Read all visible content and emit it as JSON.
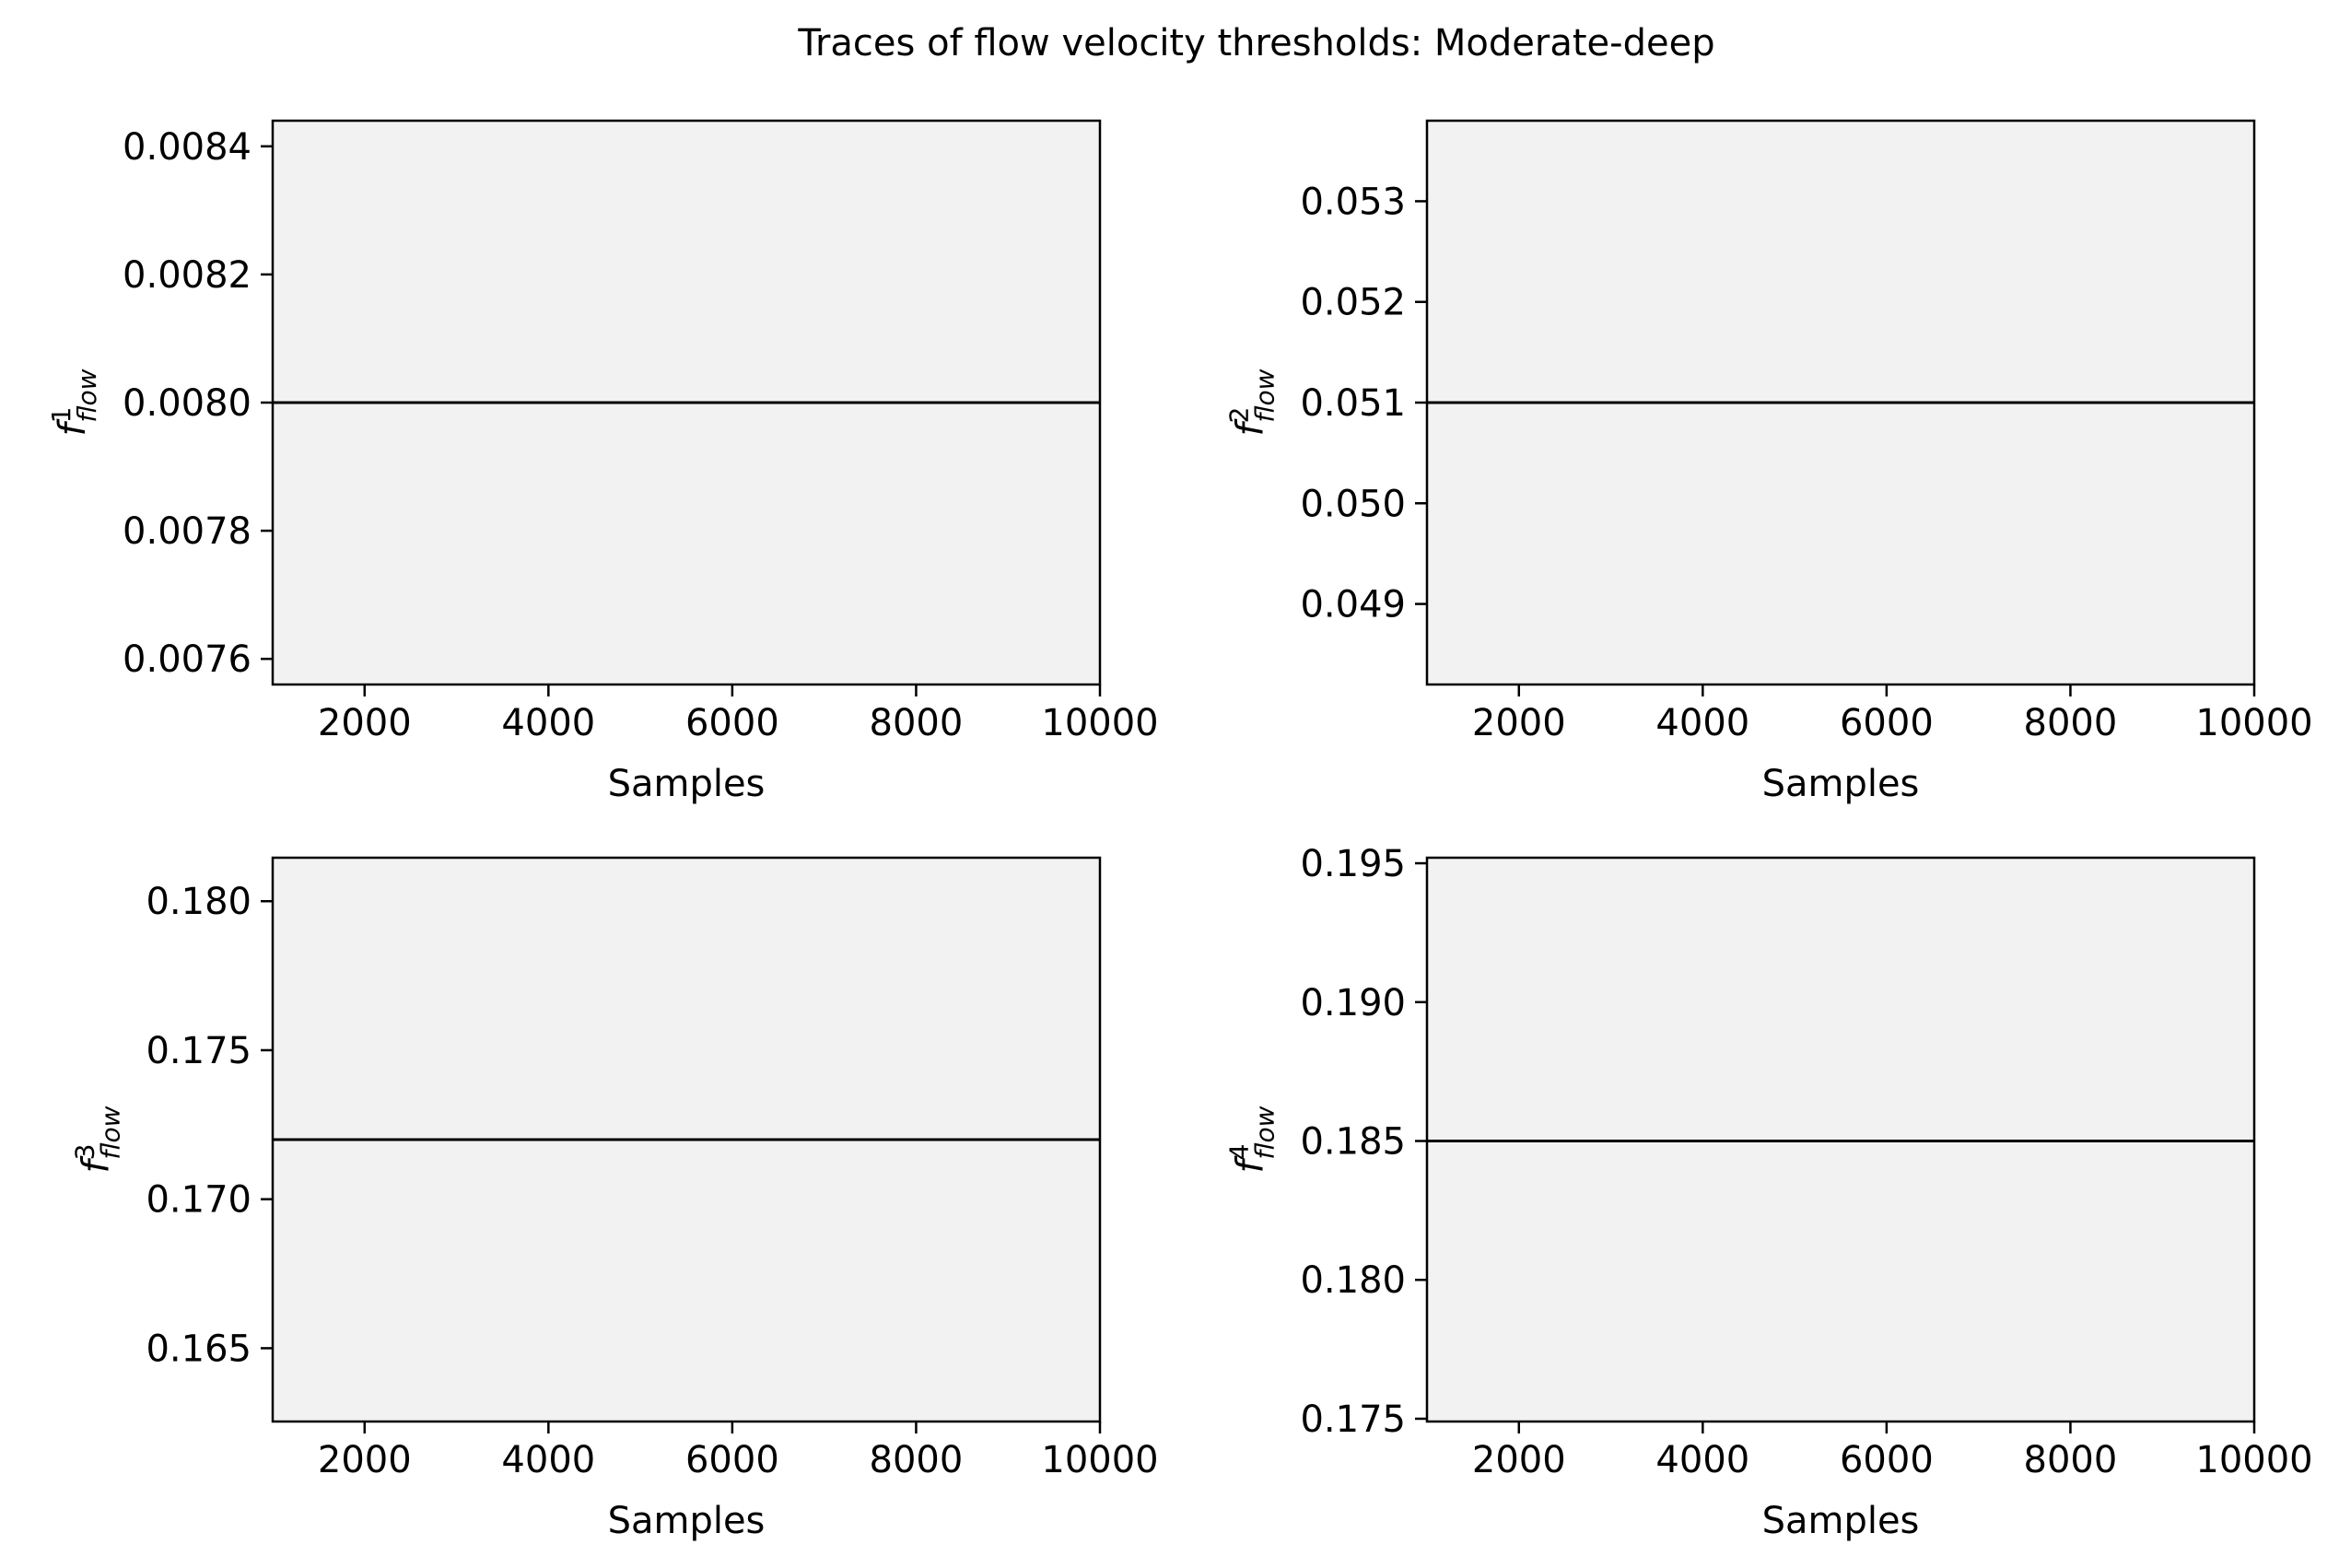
{
  "figure_title": "Traces of flow velocity thresholds: Moderate-deep",
  "colors": {
    "axes_bg": "#f2f2f2",
    "line": "#000000",
    "frame": "#000000"
  },
  "chart_data": [
    {
      "type": "line",
      "ylabel_base": "f",
      "ylabel_sup": "1",
      "ylabel_sub": "flow",
      "xlabel": "Samples",
      "xlim": [
        1000,
        10000
      ],
      "ylim": [
        0.00756,
        0.00844
      ],
      "xticks": [
        2000,
        4000,
        6000,
        8000,
        10000
      ],
      "xtick_labels": [
        "2000",
        "4000",
        "6000",
        "8000",
        "10000"
      ],
      "yticks": [
        0.0076,
        0.0078,
        0.008,
        0.0082,
        0.0084
      ],
      "ytick_labels": [
        "0.0076",
        "0.0078",
        "0.0080",
        "0.0082",
        "0.0084"
      ],
      "series": [
        {
          "x": [
            1000,
            10000
          ],
          "y": [
            0.008,
            0.008
          ]
        }
      ]
    },
    {
      "type": "line",
      "ylabel_base": "f",
      "ylabel_sup": "2",
      "ylabel_sub": "flow",
      "xlabel": "Samples",
      "xlim": [
        1000,
        10000
      ],
      "ylim": [
        0.0482,
        0.0538
      ],
      "xticks": [
        2000,
        4000,
        6000,
        8000,
        10000
      ],
      "xtick_labels": [
        "2000",
        "4000",
        "6000",
        "8000",
        "10000"
      ],
      "yticks": [
        0.049,
        0.05,
        0.051,
        0.052,
        0.053
      ],
      "ytick_labels": [
        "0.049",
        "0.050",
        "0.051",
        "0.052",
        "0.053"
      ],
      "series": [
        {
          "x": [
            1000,
            10000
          ],
          "y": [
            0.051,
            0.051
          ]
        }
      ]
    },
    {
      "type": "line",
      "ylabel_base": "f",
      "ylabel_sup": "3",
      "ylabel_sub": "flow",
      "xlabel": "Samples",
      "xlim": [
        1000,
        10000
      ],
      "ylim": [
        0.16254,
        0.18146
      ],
      "xticks": [
        2000,
        4000,
        6000,
        8000,
        10000
      ],
      "xtick_labels": [
        "2000",
        "4000",
        "6000",
        "8000",
        "10000"
      ],
      "yticks": [
        0.165,
        0.17,
        0.175,
        0.18
      ],
      "ytick_labels": [
        "0.165",
        "0.170",
        "0.175",
        "0.180"
      ],
      "series": [
        {
          "x": [
            1000,
            10000
          ],
          "y": [
            0.172,
            0.172
          ]
        }
      ]
    },
    {
      "type": "line",
      "ylabel_base": "f",
      "ylabel_sup": "4",
      "ylabel_sub": "flow",
      "xlabel": "Samples",
      "xlim": [
        1000,
        10000
      ],
      "ylim": [
        0.1749,
        0.1952
      ],
      "xticks": [
        2000,
        4000,
        6000,
        8000,
        10000
      ],
      "xtick_labels": [
        "2000",
        "4000",
        "6000",
        "8000",
        "10000"
      ],
      "yticks": [
        0.175,
        0.18,
        0.185,
        0.19,
        0.195
      ],
      "ytick_labels": [
        "0.175",
        "0.180",
        "0.185",
        "0.190",
        "0.195"
      ],
      "series": [
        {
          "x": [
            1000,
            10000
          ],
          "y": [
            0.185,
            0.185
          ]
        }
      ]
    }
  ]
}
